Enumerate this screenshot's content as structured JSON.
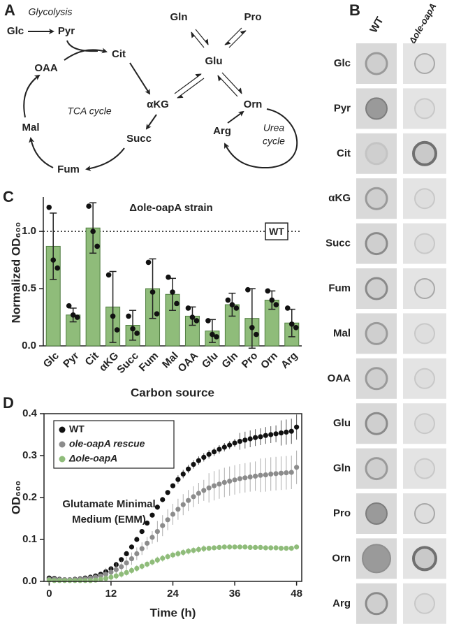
{
  "panel_labels": [
    "A",
    "B",
    "C",
    "D"
  ],
  "pathway": {
    "glycolysis_label": "Glycolysis",
    "tca_label": "TCA cycle",
    "urea_label": [
      "Urea",
      "cycle"
    ],
    "metabolites": [
      "Glc",
      "Pyr",
      "Cit",
      "OAA",
      "αKG",
      "Mal",
      "Succ",
      "Fum",
      "Gln",
      "Pro",
      "Glu",
      "Orn",
      "Arg"
    ]
  },
  "spot_assay": {
    "columns": [
      "WT",
      "Δole-oapA"
    ],
    "rows": [
      "Glc",
      "Pyr",
      "Cit",
      "αKG",
      "Succ",
      "Fum",
      "Mal",
      "OAA",
      "Glu",
      "Gln",
      "Pro",
      "Orn",
      "Arg"
    ]
  },
  "chart_data": [
    {
      "type": "bar",
      "annotation": "Δole-oapA strain",
      "xlabel": "Carbon source",
      "ylabel": "Normalized OD₆₀₀",
      "categories": [
        "Glc",
        "Pyr",
        "Cit",
        "αKG",
        "Succ",
        "Fum",
        "Mal",
        "OAA",
        "Glu",
        "Gln",
        "Pro",
        "Orn",
        "Arg"
      ],
      "values": [
        0.87,
        0.27,
        1.03,
        0.34,
        0.18,
        0.5,
        0.45,
        0.26,
        0.13,
        0.36,
        0.24,
        0.4,
        0.2
      ],
      "errors": [
        0.29,
        0.06,
        0.22,
        0.31,
        0.13,
        0.26,
        0.14,
        0.08,
        0.1,
        0.1,
        0.26,
        0.08,
        0.12
      ],
      "points": [
        [
          1.21,
          0.75,
          0.68
        ],
        [
          0.35,
          0.27,
          0.25
        ],
        [
          1.22,
          1.0,
          0.87
        ],
        [
          0.62,
          0.26,
          0.14
        ],
        [
          0.26,
          0.15,
          0.11
        ],
        [
          0.73,
          0.47,
          0.28
        ],
        [
          0.6,
          0.47,
          0.37
        ],
        [
          0.33,
          0.25,
          0.22
        ],
        [
          0.22,
          0.1,
          0.08
        ],
        [
          0.4,
          0.36,
          0.33
        ],
        [
          0.49,
          0.16,
          0.1
        ],
        [
          0.48,
          0.4,
          0.36
        ],
        [
          0.33,
          0.19,
          0.16
        ]
      ],
      "color": "#8fbc7a",
      "reference_line": {
        "value": 1.0,
        "label": "WT"
      },
      "ylim": [
        0,
        1.3
      ],
      "yticks": [
        {
          "value": 0,
          "label": "0.0"
        },
        {
          "value": 0.5,
          "label": "0.5"
        },
        {
          "value": 1,
          "label": "1.0"
        }
      ]
    },
    {
      "type": "scatter",
      "annotation": [
        "Glutamate Minimal",
        "Medium (EMM)"
      ],
      "xlabel": "Time (h)",
      "ylabel": "OD₆₀₀",
      "legend": "upper left",
      "x": [
        0,
        1,
        2,
        3,
        4,
        5,
        6,
        7,
        8,
        9,
        10,
        11,
        12,
        13,
        14,
        15,
        16,
        17,
        18,
        19,
        20,
        21,
        22,
        23,
        24,
        25,
        26,
        27,
        28,
        29,
        30,
        31,
        32,
        33,
        34,
        35,
        36,
        37,
        38,
        39,
        40,
        41,
        42,
        43,
        44,
        45,
        46,
        47,
        48
      ],
      "series": [
        {
          "name": "WT",
          "color": "#111111",
          "values": [
            0.008,
            0.007,
            0.005,
            0.004,
            0.004,
            0.005,
            0.006,
            0.008,
            0.01,
            0.013,
            0.017,
            0.023,
            0.03,
            0.04,
            0.052,
            0.066,
            0.082,
            0.1,
            0.119,
            0.139,
            0.158,
            0.177,
            0.195,
            0.212,
            0.228,
            0.243,
            0.256,
            0.268,
            0.279,
            0.288,
            0.296,
            0.303,
            0.309,
            0.315,
            0.32,
            0.325,
            0.33,
            0.334,
            0.337,
            0.34,
            0.343,
            0.345,
            0.348,
            0.35,
            0.352,
            0.354,
            0.356,
            0.358,
            0.368
          ],
          "errors": [
            0.004,
            0.004,
            0.004,
            0.004,
            0.004,
            0.004,
            0.004,
            0.004,
            0.004,
            0.004,
            0.004,
            0.006,
            0.006,
            0.006,
            0.006,
            0.006,
            0.006,
            0.006,
            0.006,
            0.006,
            0.006,
            0.006,
            0.006,
            0.006,
            0.006,
            0.01,
            0.01,
            0.01,
            0.01,
            0.01,
            0.01,
            0.01,
            0.01,
            0.01,
            0.01,
            0.01,
            0.01,
            0.02,
            0.02,
            0.02,
            0.02,
            0.02,
            0.02,
            0.02,
            0.02,
            0.03,
            0.03,
            0.03,
            0.03
          ]
        },
        {
          "name": "ole-oapA rescue",
          "color": "#8c8c8c",
          "values": [
            0.005,
            0.005,
            0.004,
            0.004,
            0.004,
            0.004,
            0.005,
            0.006,
            0.008,
            0.01,
            0.013,
            0.017,
            0.022,
            0.028,
            0.035,
            0.044,
            0.054,
            0.066,
            0.078,
            0.091,
            0.105,
            0.119,
            0.133,
            0.147,
            0.16,
            0.172,
            0.183,
            0.193,
            0.202,
            0.21,
            0.217,
            0.223,
            0.228,
            0.232,
            0.236,
            0.239,
            0.242,
            0.245,
            0.247,
            0.249,
            0.251,
            0.253,
            0.254,
            0.256,
            0.257,
            0.258,
            0.259,
            0.26,
            0.272
          ],
          "errors": [
            0.003,
            0.003,
            0.003,
            0.003,
            0.003,
            0.003,
            0.003,
            0.003,
            0.003,
            0.003,
            0.003,
            0.015,
            0.015,
            0.015,
            0.015,
            0.015,
            0.015,
            0.015,
            0.015,
            0.015,
            0.015,
            0.025,
            0.025,
            0.025,
            0.025,
            0.025,
            0.025,
            0.025,
            0.025,
            0.025,
            0.025,
            0.035,
            0.035,
            0.035,
            0.035,
            0.035,
            0.035,
            0.035,
            0.035,
            0.035,
            0.035,
            0.04,
            0.04,
            0.04,
            0.04,
            0.04,
            0.04,
            0.04,
            0.04
          ]
        },
        {
          "name": "Δole-oapA",
          "color": "#8fbc7a",
          "values": [
            0.003,
            0.002,
            0.002,
            0.002,
            0.002,
            0.002,
            0.002,
            0.002,
            0.002,
            0.003,
            0.005,
            0.007,
            0.01,
            0.013,
            0.017,
            0.021,
            0.026,
            0.031,
            0.036,
            0.041,
            0.046,
            0.051,
            0.055,
            0.059,
            0.063,
            0.066,
            0.069,
            0.072,
            0.074,
            0.076,
            0.078,
            0.079,
            0.08,
            0.081,
            0.082,
            0.082,
            0.082,
            0.082,
            0.082,
            0.081,
            0.081,
            0.081,
            0.08,
            0.08,
            0.08,
            0.079,
            0.079,
            0.079,
            0.082
          ],
          "errors": [
            0.003,
            0.003,
            0.003,
            0.003,
            0.003,
            0.003,
            0.003,
            0.003,
            0.003,
            0.003,
            0.003,
            0.008,
            0.008,
            0.008,
            0.008,
            0.008,
            0.008,
            0.008,
            0.008,
            0.008,
            0.008,
            0.008,
            0.008,
            0.008,
            0.008,
            0.008,
            0.008,
            0.008,
            0.008,
            0.008,
            0.008,
            0.006,
            0.006,
            0.006,
            0.006,
            0.006,
            0.006,
            0.006,
            0.006,
            0.006,
            0.006,
            0.006,
            0.006,
            0.006,
            0.006,
            0.006,
            0.006,
            0.006,
            0.006
          ]
        }
      ],
      "xlim": [
        -1,
        49
      ],
      "ylim": [
        0,
        0.4
      ],
      "xticks": [
        0,
        12,
        24,
        36,
        48
      ],
      "yticks": [
        {
          "value": 0,
          "label": "0.0"
        },
        {
          "value": 0.1,
          "label": "0.1"
        },
        {
          "value": 0.2,
          "label": "0.2"
        },
        {
          "value": 0.3,
          "label": "0.3"
        },
        {
          "value": 0.4,
          "label": "0.4"
        }
      ]
    }
  ]
}
